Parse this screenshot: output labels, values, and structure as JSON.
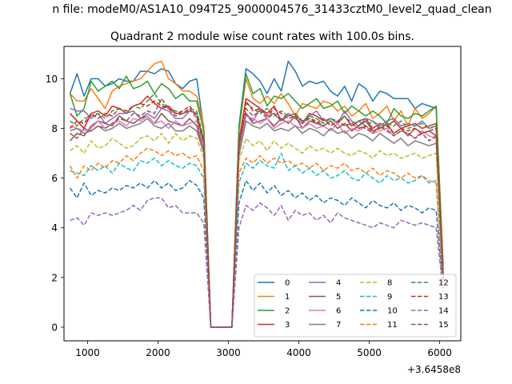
{
  "figure": {
    "suptitle": "n file: modeM0/AS1A10_094T25_9000004576_31433cztM0_level2_quad_clean"
  },
  "chart_data": {
    "type": "line",
    "title": "Quadrant 2 module wise count rates with 100.0s bins.",
    "xlabel": "",
    "ylabel": "",
    "offset_text": "+3.6458e8",
    "xlim": [
      665,
      6300
    ],
    "ylim": [
      -0.55,
      11.3
    ],
    "xticks": [
      1000,
      2000,
      3000,
      4000,
      5000,
      6000
    ],
    "yticks": [
      0,
      2,
      4,
      6,
      8,
      10
    ],
    "grid": false,
    "legend": {
      "placement": "lower-right",
      "columns": 4
    },
    "x": [
      750,
      850,
      950,
      1050,
      1150,
      1250,
      1350,
      1450,
      1550,
      1650,
      1750,
      1850,
      1950,
      2050,
      2150,
      2250,
      2350,
      2450,
      2550,
      2650,
      2750,
      2850,
      2950,
      3050,
      3150,
      3250,
      3350,
      3450,
      3550,
      3650,
      3750,
      3850,
      3950,
      4050,
      4150,
      4250,
      4350,
      4450,
      4550,
      4650,
      4750,
      4850,
      4950,
      5050,
      5150,
      5250,
      5350,
      5450,
      5550,
      5650,
      5750,
      5850,
      5950,
      6050
    ],
    "series": [
      {
        "name": "0",
        "color": "#1f77b4",
        "dash": "solid",
        "values": [
          9.4,
          10.2,
          9.3,
          10.0,
          10.0,
          9.7,
          9.8,
          10.0,
          9.9,
          9.9,
          10.3,
          10.3,
          10.2,
          10.4,
          10.3,
          9.8,
          9.6,
          9.9,
          10.0,
          8.0,
          0,
          0,
          0,
          0,
          8.1,
          10.4,
          10.2,
          9.9,
          9.4,
          10.0,
          9.5,
          10.7,
          10.3,
          9.7,
          9.9,
          9.8,
          9.9,
          9.5,
          9.3,
          9.7,
          9.1,
          9.8,
          9.6,
          9.1,
          9.5,
          9.4,
          9.2,
          9.2,
          9.2,
          8.8,
          9.0,
          8.9,
          8.8,
          2.5
        ]
      },
      {
        "name": "1",
        "color": "#ff7f0e",
        "dash": "solid",
        "values": [
          9.4,
          9.1,
          9.1,
          9.6,
          9.2,
          8.8,
          9.5,
          9.7,
          9.8,
          9.9,
          10.0,
          10.3,
          10.6,
          10.7,
          10.0,
          9.8,
          9.5,
          9.5,
          9.3,
          8.1,
          0,
          0,
          0,
          0,
          7.9,
          10.0,
          9.2,
          9.0,
          9.3,
          9.0,
          9.4,
          9.0,
          8.5,
          9.0,
          8.9,
          8.8,
          9.1,
          9.0,
          8.7,
          8.9,
          8.5,
          8.7,
          9.0,
          8.4,
          8.6,
          8.9,
          8.3,
          8.7,
          8.1,
          8.8,
          8.4,
          8.6,
          8.9,
          2.3
        ]
      },
      {
        "name": "2",
        "color": "#2ca02c",
        "dash": "solid",
        "values": [
          9.4,
          8.5,
          8.8,
          9.9,
          9.5,
          9.7,
          9.9,
          9.6,
          10.1,
          9.6,
          9.7,
          9.9,
          9.4,
          9.8,
          9.6,
          9.2,
          9.4,
          9.1,
          9.1,
          7.9,
          0,
          0,
          0,
          0,
          8.0,
          10.2,
          9.4,
          9.6,
          8.9,
          9.3,
          9.2,
          9.4,
          9.1,
          8.8,
          9.0,
          9.2,
          8.8,
          8.9,
          9.1,
          8.6,
          8.9,
          8.7,
          8.5,
          8.7,
          8.5,
          8.2,
          8.8,
          8.5,
          8.4,
          8.6,
          8.5,
          8.7,
          8.9,
          2.2
        ]
      },
      {
        "name": "3",
        "color": "#d62728",
        "dash": "solid",
        "values": [
          8.6,
          8.3,
          8.0,
          8.6,
          8.7,
          8.5,
          8.9,
          8.8,
          8.6,
          8.9,
          9.0,
          9.3,
          9.0,
          8.8,
          8.9,
          8.6,
          8.6,
          8.7,
          8.6,
          7.5,
          0,
          0,
          0,
          0,
          7.5,
          9.2,
          9.0,
          8.8,
          8.6,
          8.9,
          8.3,
          8.6,
          8.4,
          8.2,
          8.6,
          8.5,
          8.3,
          8.4,
          8.2,
          8.5,
          8.1,
          8.3,
          8.4,
          8.0,
          8.2,
          8.1,
          8.3,
          8.0,
          8.1,
          8.2,
          8.0,
          8.1,
          8.2,
          2.1
        ]
      },
      {
        "name": "4",
        "color": "#9467bd",
        "dash": "solid",
        "values": [
          8.8,
          8.7,
          8.7,
          8.4,
          8.6,
          8.2,
          8.4,
          8.6,
          8.6,
          8.7,
          8.4,
          8.6,
          8.4,
          8.8,
          8.7,
          8.4,
          8.4,
          8.7,
          8.6,
          7.4,
          0,
          0,
          0,
          0,
          7.4,
          8.6,
          8.3,
          8.8,
          8.5,
          8.6,
          8.3,
          8.6,
          8.4,
          8.2,
          8.5,
          8.7,
          8.3,
          8.4,
          8.2,
          8.7,
          8.3,
          8.1,
          8.4,
          8.3,
          8.1,
          8.3,
          8.4,
          8.1,
          8.2,
          8.1,
          8.3,
          8.0,
          8.1,
          2.1
        ]
      },
      {
        "name": "5",
        "color": "#8c564b",
        "dash": "solid",
        "values": [
          7.5,
          7.8,
          7.7,
          8.1,
          8.3,
          8.2,
          8.1,
          8.5,
          8.3,
          8.2,
          8.4,
          8.5,
          8.2,
          8.6,
          8.3,
          8.2,
          8.1,
          8.4,
          8.1,
          7.1,
          0,
          0,
          0,
          0,
          7.0,
          8.6,
          8.2,
          8.3,
          8.4,
          8.1,
          8.4,
          8.2,
          8.5,
          8.0,
          8.3,
          8.2,
          8.1,
          8.3,
          8.0,
          8.2,
          7.9,
          8.1,
          8.3,
          7.9,
          8.0,
          8.2,
          7.8,
          8.0,
          7.7,
          8.0,
          7.8,
          7.9,
          7.7,
          2.0
        ]
      },
      {
        "name": "6",
        "color": "#e377c2",
        "dash": "solid",
        "values": [
          8.1,
          8.0,
          7.9,
          8.0,
          8.3,
          8.0,
          8.2,
          8.3,
          8.1,
          8.4,
          8.3,
          8.5,
          8.2,
          8.3,
          8.0,
          8.3,
          8.1,
          8.2,
          8.3,
          7.2,
          0,
          0,
          0,
          0,
          7.0,
          8.5,
          8.4,
          8.2,
          8.4,
          8.0,
          8.2,
          8.3,
          8.1,
          8.0,
          8.2,
          8.0,
          8.1,
          7.9,
          8.2,
          7.8,
          8.0,
          7.9,
          8.1,
          7.8,
          7.9,
          8.0,
          7.7,
          7.9,
          7.8,
          7.6,
          7.9,
          7.7,
          7.6,
          2.0
        ]
      },
      {
        "name": "7",
        "color": "#7f7f7f",
        "dash": "solid",
        "values": [
          7.9,
          8.0,
          7.8,
          7.9,
          8.1,
          7.9,
          8.0,
          8.2,
          8.0,
          8.1,
          8.2,
          8.4,
          8.1,
          8.0,
          8.2,
          7.9,
          7.9,
          8.1,
          7.9,
          7.0,
          0,
          0,
          0,
          0,
          6.9,
          8.3,
          8.1,
          8.0,
          8.2,
          7.9,
          8.0,
          7.9,
          8.1,
          7.8,
          8.0,
          7.9,
          7.7,
          8.0,
          7.8,
          7.9,
          7.6,
          7.8,
          7.7,
          7.5,
          7.8,
          7.6,
          7.4,
          7.6,
          7.3,
          7.5,
          7.4,
          7.3,
          7.4,
          1.9
        ]
      },
      {
        "name": "8",
        "color": "#bcbd22",
        "dash": "dashed",
        "values": [
          7.1,
          7.3,
          7.0,
          7.5,
          7.2,
          7.3,
          7.6,
          7.4,
          7.2,
          7.3,
          7.6,
          7.7,
          7.5,
          7.8,
          7.4,
          7.8,
          7.5,
          7.7,
          7.6,
          6.8,
          0,
          0,
          0,
          0,
          6.7,
          7.6,
          7.3,
          7.5,
          7.1,
          7.5,
          7.2,
          7.4,
          7.2,
          7.0,
          7.3,
          7.1,
          7.2,
          7.0,
          7.2,
          7.0,
          6.9,
          7.1,
          7.0,
          6.8,
          7.1,
          6.9,
          7.0,
          6.8,
          6.9,
          7.0,
          6.8,
          6.9,
          7.0,
          1.8
        ]
      },
      {
        "name": "9",
        "color": "#17becf",
        "dash": "dashed",
        "values": [
          6.3,
          6.2,
          6.1,
          6.5,
          6.3,
          6.5,
          6.2,
          6.6,
          6.4,
          6.3,
          6.7,
          6.6,
          6.8,
          6.5,
          6.7,
          6.5,
          6.4,
          6.6,
          6.5,
          6.0,
          0,
          0,
          0,
          0,
          5.8,
          6.6,
          6.4,
          6.7,
          6.5,
          6.4,
          7.0,
          6.3,
          6.5,
          6.2,
          6.4,
          6.1,
          6.3,
          6.0,
          6.1,
          6.3,
          6.0,
          5.9,
          6.2,
          6.0,
          5.8,
          6.1,
          5.9,
          6.0,
          5.8,
          5.9,
          6.1,
          5.8,
          5.9,
          1.7
        ]
      },
      {
        "name": "10",
        "color": "#1f77b4",
        "dash": "dashed",
        "values": [
          5.6,
          5.2,
          5.8,
          5.3,
          5.5,
          5.4,
          5.6,
          5.5,
          5.7,
          5.6,
          5.8,
          5.6,
          5.9,
          5.6,
          5.8,
          5.5,
          5.6,
          5.9,
          5.7,
          5.2,
          0,
          0,
          0,
          0,
          5.0,
          5.9,
          5.5,
          5.8,
          5.4,
          5.7,
          5.3,
          5.5,
          5.2,
          5.4,
          5.1,
          5.3,
          5.0,
          5.2,
          5.1,
          4.9,
          5.2,
          5.0,
          4.8,
          5.1,
          4.9,
          4.8,
          5.0,
          4.7,
          4.9,
          4.8,
          4.6,
          4.8,
          4.7,
          1.6
        ]
      },
      {
        "name": "11",
        "color": "#ff7f0e",
        "dash": "dashed",
        "values": [
          6.5,
          6.0,
          6.5,
          6.3,
          6.6,
          6.4,
          6.7,
          6.6,
          6.9,
          6.7,
          7.0,
          7.2,
          7.1,
          6.9,
          7.1,
          6.9,
          7.0,
          6.8,
          6.9,
          6.3,
          0,
          0,
          0,
          0,
          6.2,
          6.8,
          6.6,
          6.9,
          6.6,
          6.8,
          6.6,
          6.7,
          6.5,
          6.6,
          6.4,
          6.6,
          6.3,
          6.5,
          6.4,
          6.6,
          6.3,
          6.4,
          6.2,
          6.4,
          6.1,
          6.3,
          6.2,
          6.0,
          6.2,
          6.0,
          6.1,
          5.9,
          5.8,
          1.7
        ]
      },
      {
        "name": "12",
        "color": "#2ca02c",
        "dash": "dashed",
        "values": [
          8.3,
          8.1,
          8.4,
          8.5,
          8.6,
          8.4,
          8.7,
          8.8,
          8.6,
          8.9,
          8.8,
          9.1,
          9.4,
          9.0,
          8.8,
          8.7,
          8.6,
          8.8,
          8.7,
          7.6,
          0,
          0,
          0,
          0,
          7.4,
          9.0,
          8.8,
          8.6,
          8.8,
          8.5,
          8.7,
          8.5,
          8.6,
          8.3,
          8.5,
          8.4,
          8.2,
          8.4,
          8.3,
          8.5,
          8.2,
          8.3,
          8.1,
          8.3,
          8.0,
          8.2,
          8.1,
          8.3,
          8.0,
          8.1,
          8.2,
          8.0,
          8.1,
          2.1
        ]
      },
      {
        "name": "13",
        "color": "#d62728",
        "dash": "dashed",
        "values": [
          8.0,
          8.3,
          8.2,
          8.6,
          8.4,
          8.6,
          8.5,
          8.8,
          8.7,
          8.9,
          9.0,
          8.9,
          9.1,
          8.9,
          8.8,
          8.6,
          8.7,
          8.9,
          8.5,
          7.5,
          0,
          0,
          0,
          0,
          7.3,
          9.1,
          8.7,
          8.8,
          8.5,
          8.8,
          8.6,
          8.4,
          8.5,
          8.3,
          8.4,
          8.2,
          8.4,
          8.1,
          8.3,
          8.1,
          8.2,
          8.0,
          8.1,
          7.9,
          8.0,
          8.1,
          7.8,
          8.0,
          7.9,
          8.0,
          7.8,
          7.9,
          8.0,
          2.0
        ]
      },
      {
        "name": "14",
        "color": "#9467bd",
        "dash": "dashed",
        "values": [
          4.3,
          4.4,
          4.1,
          4.6,
          4.5,
          4.6,
          4.5,
          4.6,
          4.7,
          4.9,
          4.7,
          5.1,
          5.2,
          5.2,
          4.8,
          4.9,
          4.6,
          4.6,
          4.6,
          4.2,
          0,
          0,
          0,
          0,
          4.0,
          4.9,
          4.7,
          5.0,
          4.8,
          4.5,
          4.9,
          4.3,
          4.7,
          4.5,
          4.6,
          4.3,
          4.5,
          4.2,
          4.6,
          4.4,
          4.3,
          4.2,
          4.1,
          4.0,
          4.2,
          4.1,
          4.0,
          4.3,
          4.2,
          4.1,
          4.2,
          4.1,
          4.0,
          1.4
        ]
      },
      {
        "name": "15",
        "color": "#8c564b",
        "dash": "dashed",
        "values": [
          7.8,
          7.6,
          8.0,
          7.9,
          8.1,
          8.0,
          8.2,
          8.4,
          8.3,
          8.6,
          8.5,
          8.7,
          8.6,
          9.2,
          8.8,
          8.5,
          8.6,
          8.8,
          8.4,
          7.4,
          0,
          0,
          0,
          0,
          7.2,
          8.8,
          8.5,
          8.7,
          8.4,
          8.6,
          8.3,
          8.5,
          8.6,
          8.2,
          8.4,
          8.3,
          8.1,
          8.3,
          8.0,
          8.2,
          7.9,
          8.1,
          8.0,
          7.8,
          8.1,
          7.9,
          7.7,
          7.9,
          7.8,
          7.6,
          7.8,
          7.5,
          7.7,
          1.9
        ]
      }
    ]
  }
}
